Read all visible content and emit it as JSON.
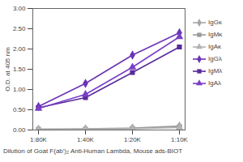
{
  "chart_data": {
    "type": "line",
    "x_label": "Dilution of Goat F(ab')₂ Anti-Human Lambda, Mouse ads-BIOT",
    "y_label": "O.D. at 405 nm",
    "categories": [
      "1:80K",
      "1:40K",
      "1:20K",
      "1:10K"
    ],
    "ylim": [
      0,
      3
    ],
    "yticks": [
      {
        "value": 0,
        "label": "0.00"
      },
      {
        "value": 0.5,
        "label": "0.50"
      },
      {
        "value": 1,
        "label": "1.00"
      },
      {
        "value": 1.5,
        "label": "1.50"
      },
      {
        "value": 2,
        "label": "2.00"
      },
      {
        "value": 2.5,
        "label": "2.50"
      },
      {
        "value": 3,
        "label": "3.00"
      }
    ],
    "grid": false,
    "legend": "right",
    "series": [
      {
        "name": "IgGκ",
        "color": "#a6a6a6",
        "marker": "diamond",
        "values": [
          0.02,
          0.03,
          0.05,
          0.1
        ]
      },
      {
        "name": "IgMκ",
        "color": "#999999",
        "marker": "square",
        "values": [
          0.02,
          0.02,
          0.04,
          0.08
        ]
      },
      {
        "name": "IgAκ",
        "color": "#b3b3b3",
        "marker": "triangle",
        "values": [
          0.01,
          0.02,
          0.03,
          0.06
        ]
      },
      {
        "name": "IgGλ",
        "color": "#6b33b5",
        "marker": "diamond",
        "values": [
          0.58,
          1.15,
          1.85,
          2.4
        ]
      },
      {
        "name": "IgMλ",
        "color": "#5a2a9c",
        "marker": "square",
        "values": [
          0.55,
          0.8,
          1.42,
          2.05
        ]
      },
      {
        "name": "IgAλ",
        "color": "#7a3fc6",
        "marker": "triangle",
        "values": [
          0.53,
          0.88,
          1.55,
          2.3
        ]
      }
    ]
  }
}
